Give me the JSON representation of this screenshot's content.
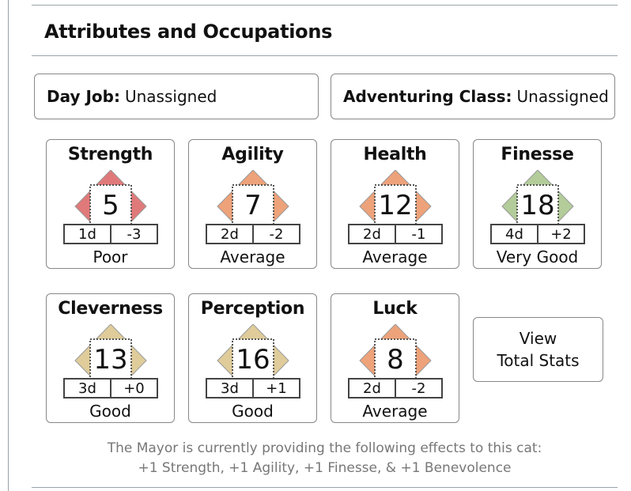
{
  "section": {
    "title": "Attributes and Occupations"
  },
  "day_job": {
    "label": "Day Job:",
    "value": "Unassigned"
  },
  "adventuring_class": {
    "label": "Adventuring Class:",
    "value": "Unassigned"
  },
  "colors": {
    "poor": "#e07a7a",
    "average": "#eda27a",
    "good": "#dfcc9a",
    "very_good": "#b3cc9a"
  },
  "stats": [
    {
      "name": "Strength",
      "value": "5",
      "dice": "1d",
      "modifier": "-3",
      "rating": "Poor",
      "tier": "poor"
    },
    {
      "name": "Agility",
      "value": "7",
      "dice": "2d",
      "modifier": "-2",
      "rating": "Average",
      "tier": "average"
    },
    {
      "name": "Health",
      "value": "12",
      "dice": "2d",
      "modifier": "-1",
      "rating": "Average",
      "tier": "average"
    },
    {
      "name": "Finesse",
      "value": "18",
      "dice": "4d",
      "modifier": "+2",
      "rating": "Very Good",
      "tier": "very_good"
    },
    {
      "name": "Cleverness",
      "value": "13",
      "dice": "3d",
      "modifier": "+0",
      "rating": "Good",
      "tier": "good"
    },
    {
      "name": "Perception",
      "value": "16",
      "dice": "3d",
      "modifier": "+1",
      "rating": "Good",
      "tier": "good"
    },
    {
      "name": "Luck",
      "value": "8",
      "dice": "2d",
      "modifier": "-2",
      "rating": "Average",
      "tier": "average"
    }
  ],
  "view_total_stats": {
    "line1": "View",
    "line2": "Total Stats"
  },
  "mayor": {
    "line1": "The Mayor is currently providing the following effects to this cat:",
    "line2": "+1 Strength, +1 Agility, +1 Finesse, & +1 Benevolence"
  }
}
